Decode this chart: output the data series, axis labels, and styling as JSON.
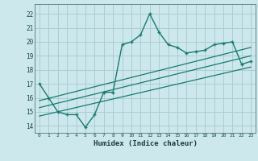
{
  "xlabel": "Humidex (Indice chaleur)",
  "bg_color": "#cce8ec",
  "grid_color": "#aacdd3",
  "line_color": "#1a7a6e",
  "xlim": [
    -0.5,
    23.5
  ],
  "ylim": [
    13.5,
    22.7
  ],
  "x_ticks": [
    0,
    1,
    2,
    3,
    4,
    5,
    6,
    7,
    8,
    9,
    10,
    11,
    12,
    13,
    14,
    15,
    16,
    17,
    18,
    19,
    20,
    21,
    22,
    23
  ],
  "y_ticks": [
    14,
    15,
    16,
    17,
    18,
    19,
    20,
    21,
    22
  ],
  "main_x": [
    0,
    1,
    2,
    3,
    4,
    5,
    6,
    7,
    8,
    9,
    10,
    11,
    12,
    13,
    14,
    15,
    16,
    17,
    18,
    19,
    20,
    21,
    22,
    23
  ],
  "main_y": [
    17.0,
    16.0,
    15.0,
    14.8,
    14.8,
    13.9,
    14.8,
    16.4,
    16.4,
    19.8,
    20.0,
    20.5,
    22.0,
    20.7,
    19.8,
    19.6,
    19.2,
    19.3,
    19.4,
    19.8,
    19.9,
    20.0,
    18.4,
    18.6
  ],
  "trend1_x": [
    0,
    23
  ],
  "trend1_y": [
    14.7,
    18.2
  ],
  "trend2_x": [
    0,
    23
  ],
  "trend2_y": [
    15.3,
    19.0
  ],
  "trend3_x": [
    0,
    23
  ],
  "trend3_y": [
    15.8,
    19.6
  ]
}
